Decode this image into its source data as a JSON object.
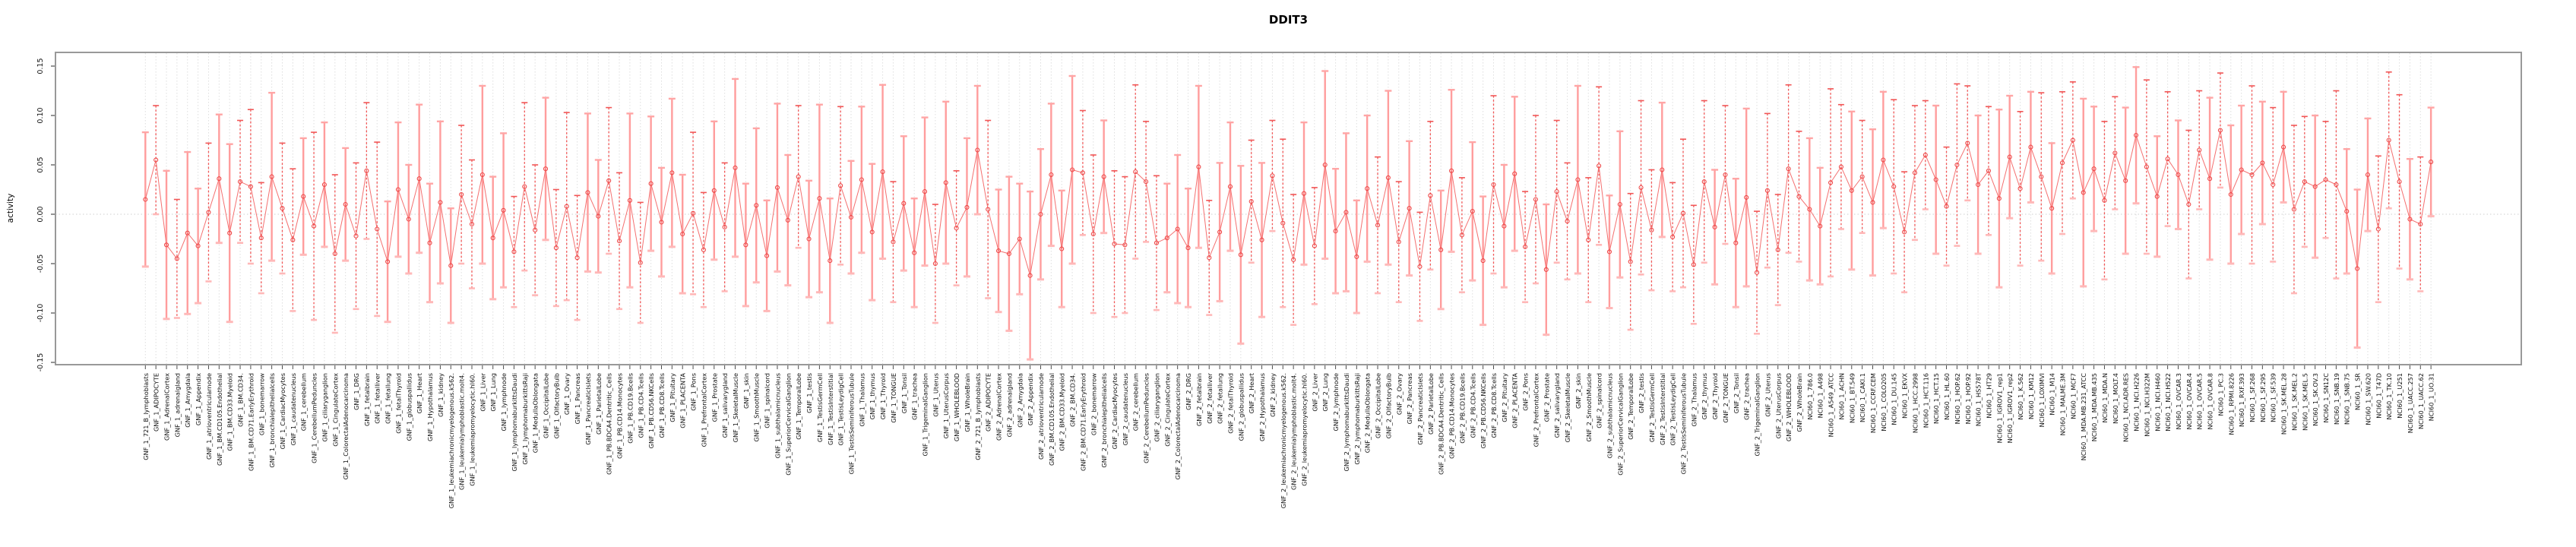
{
  "chart_data": {
    "type": "line",
    "subtype": "points-with-error-bars",
    "title": "DDIT3",
    "xlabel": "",
    "ylabel": "activity",
    "ylim": [
      -0.152,
      0.163
    ],
    "yticks": [
      -0.15,
      -0.1,
      -0.05,
      0.0,
      0.05,
      0.1,
      0.15
    ],
    "grid": "vertical dotted gridline per category; horizontal dotted line at y=0",
    "legend_position": "none",
    "marker": "open-circle",
    "categories": [
      "GNF_1_721_B_lymphoblasts",
      "GNF_1_ADIPOCYTE",
      "GNF_1_AdrenalCortex",
      "GNF_1_adrenalgland",
      "GNF_1_Amygdala",
      "GNF_1_Appendix",
      "GNF_1_atrioventricularnode",
      "GNF_1_BM.CD105.Endothelial",
      "GNF_1_BM.CD33.Myeloid",
      "GNF_1_BM.CD34.",
      "GNF_1_BM.CD71.EarlyErythroid",
      "GNF_1_bonemarrow",
      "GNF_1_bronchialepithelialcells",
      "GNF_1_CardiacMyocytes",
      "GNF_1_caudatenucleus",
      "GNF_1_cerebellum",
      "GNF_1_CerebellumPeduncles",
      "GNF_1_ciliaryganglion",
      "GNF_1_CingulateCortex",
      "GNF_1_ColorectalAdenocarcinoma",
      "GNF_1_DRG",
      "GNF_1_fetalbrain",
      "GNF_1_fetalliver",
      "GNF_1_fetallung",
      "GNF_1_fetalThyroid",
      "GNF_1_globuspallidus",
      "GNF_1_Heart",
      "GNF_1_Hypothalamus",
      "GNF_1_kidney",
      "GNF_1_leukemiachronicmyelogenous.k562.",
      "GNF_1_leukemialymphoblastic.molt4.",
      "GNF_1_leukemiapromyelocytic.hl60.",
      "GNF_1_Liver",
      "GNF_1_Lung",
      "GNF_1_lymphnode",
      "GNF_1_lymphomaburkittsDaudi",
      "GNF_1_lymphomaburkittsRaji",
      "GNF_1_MedullaOblongata",
      "GNF_1_OccipitalLobe",
      "GNF_1_OlfactoryBulb",
      "GNF_1_Ovary",
      "GNF_1_Pancreas",
      "GNF_1_PancreaticIslets",
      "GNF_1_ParietalLobe",
      "GNF_1_PB.BDCA4.Dentritic_Cells",
      "GNF_1_PB.CD14.Monocytes",
      "GNF_1_PB.CD19.Bcells",
      "GNF_1_PB.CD4.Tcells",
      "GNF_1_PB.CD56.NKCells",
      "GNF_1_PB.CD8.Tcells",
      "GNF_1_Pituitary",
      "GNF_1_PLACENTA",
      "GNF_1_Pons",
      "GNF_1_PrefrontalCortex",
      "GNF_1_Prostate",
      "GNF_1_salivarygland",
      "GNF_1_SkeletalMuscle",
      "GNF_1_skin",
      "GNF_1_SmoothMuscle",
      "GNF_1_spinalcord",
      "GNF_1_subthalamicnucleus",
      "GNF_1_SuperiorCervicalGanglion",
      "GNF_1_TemporalLobe",
      "GNF_1_testis",
      "GNF_1_TestisGermCell",
      "GNF_1_TestisInterstitial",
      "GNF_1_TestisLeydigCell",
      "GNF_1_TestisSeminiferousTubule",
      "GNF_1_Thalamus",
      "GNF_1_thymus",
      "GNF_1_Thyroid",
      "GNF_1_TONGUE",
      "GNF_1_Tonsil",
      "GNF_1_trachea",
      "GNF_1_TrigeminalGanglion",
      "GNF_1_Uterus",
      "GNF_1_UterusCorpus",
      "GNF_1_WHOLEBLOOD",
      "GNF_1_WholeBrain",
      "GNF_2_721_B_lymphoblasts",
      "GNF_2_ADIPOCYTE",
      "GNF_2_AdrenalCortex",
      "GNF_2_adrenalgland",
      "GNF_2_Amygdala",
      "GNF_2_Appendix",
      "GNF_2_atrioventricularnode",
      "GNF_2_BM.CD105.Endothelial",
      "GNF_2_BM.CD33.Myeloid",
      "GNF_2_BM.CD34.",
      "GNF_2_BM.CD71.EarlyErythroid",
      "GNF_2_bonemarrow",
      "GNF_2_bronchialepithelialcells",
      "GNF_2_CardiacMyocytes",
      "GNF_2_caudatenucleus",
      "GNF_2_cerebellum",
      "GNF_2_CerebellumPeduncles",
      "GNF_2_ciliaryganglion",
      "GNF_2_CingulateCortex",
      "GNF_2_ColorectalAdenocarcinoma",
      "GNF_2_DRG",
      "GNF_2_fetalbrain",
      "GNF_2_fetalliver",
      "GNF_2_fetallung",
      "GNF_2_fetalThyroid",
      "GNF_2_globuspallidus",
      "GNF_2_Heart",
      "GNF_2_Hypothalamus",
      "GNF_2_kidney",
      "GNF_2_leukemiachronicmyelogenous.k562.",
      "GNF_2_leukemialymphoblastic.molt4.",
      "GNF_2_leukemiapromyelocytic.hl60.",
      "GNF_2_Liver",
      "GNF_2_Lung",
      "GNF_2_lymphnode",
      "GNF_2_lymphomaburkittsDaudi",
      "GNF_2_lymphomaburkittsRaji",
      "GNF_2_MedullaOblongata",
      "GNF_2_OccipitalLobe",
      "GNF_2_OlfactoryBulb",
      "GNF_2_Ovary",
      "GNF_2_Pancreas",
      "GNF_2_PancreaticIslets",
      "GNF_2_ParietalLobe",
      "GNF_2_PB.BDCA4.Dentritic_Cells",
      "GNF_2_PB.CD14.Monocytes",
      "GNF_2_PB.CD19.Bcells",
      "GNF_2_PB.CD4.Tcells",
      "GNF_2_PB.CD56.NKCells",
      "GNF_2_PB.CD8.Tcells",
      "GNF_2_Pituitary",
      "GNF_2_PLACENTA",
      "GNF_2_Pons",
      "GNF_2_PrefrontalCortex",
      "GNF_2_Prostate",
      "GNF_2_salivarygland",
      "GNF_2_SkeletalMuscle",
      "GNF_2_skin",
      "GNF_2_SmoothMuscle",
      "GNF_2_spinalcord",
      "GNF_2_subthalamicnucleus",
      "GNF_2_SuperiorCervicalGanglion",
      "GNF_2_TemporalLobe",
      "GNF_2_testis",
      "GNF_2_TestisGermCell",
      "GNF_2_TestisInterstitial",
      "GNF_2_TestisLeydigCell",
      "GNF_2_TestisSeminiferousTubule",
      "GNF_2_Thalamus",
      "GNF_2_thymus",
      "GNF_2_Thyroid",
      "GNF_2_TONGUE",
      "GNF_2_Tonsil",
      "GNF_2_trachea",
      "GNF_2_TrigeminalGanglion",
      "GNF_2_Uterus",
      "GNF_2_UterusCorpus",
      "GNF_2_WHOLEBLOOD",
      "GNF_2_WholeBrain",
      "NCI60_1_786.0",
      "NCI60_1_A498",
      "NCI60_1_A549_ATCC",
      "NCI60_1_ACHN",
      "NCI60_1_BT.549",
      "NCI60_1_CAKI.1",
      "NCI60_1_CCRF.CEM",
      "NCI60_1_COLO205",
      "NCI60_1_DU.145",
      "NCI60_1_EKVX",
      "NCI60_1_HCC.2998",
      "NCI60_1_HCT.116",
      "NCI60_1_HCT.15",
      "NCI60_1_HL.60",
      "NCI60_1_HOP.62",
      "NCI60_1_HOP.92",
      "NCI60_1_HS578T",
      "NCI60_1_HT29",
      "NCI60_1_IGROV1_rep1",
      "NCI60_1_IGROV1_rep2",
      "NCI60_1_K.562",
      "NCI60_1_KM12",
      "NCI60_1_LOXIMVI",
      "NCI60_1_M14",
      "NCI60_1_MALME.3M",
      "NCI60_1_MCF7",
      "NCI60_1_MDA.MB.231_ATCC",
      "NCI60_1_MDA.MB.435",
      "NCI60_1_MDA.N",
      "NCI60_1_MOLT.4",
      "NCI60_1_NCI.ADR.RES",
      "NCI60_1_NCI.H226",
      "NCI60_1_NCI.H322M",
      "NCI60_1_NCI.H460",
      "NCI60_1_NCI.H522",
      "NCI60_1_OVCAR.3",
      "NCI60_1_OVCAR.4",
      "NCI60_1_OVCAR.5",
      "NCI60_1_OVCAR.8",
      "NCI60_1_PC.3",
      "NCI60_1_RPMI.8226",
      "NCI60_1_RXF.393",
      "NCI60_1_SF.268",
      "NCI60_1_SF.295",
      "NCI60_1_SF.539",
      "NCI60_1_SK.MEL.28",
      "NCI60_1_SK.MEL.2",
      "NCI60_1_SK.MEL.5",
      "NCI60_1_SK.OV.3",
      "NCI60_1_SN12C",
      "NCI60_1_SNB.19",
      "NCI60_1_SNB.75",
      "NCI60_1_SR",
      "NCI60_1_SW.620",
      "NCI60_1_T47D",
      "NCI60_1_TK.10",
      "NCI60_1_U251",
      "NCI60_1_UACC.257",
      "NCI60_1_UACC.62",
      "NCI60_1_UO.31"
    ],
    "values": [
      0.015,
      0.055,
      -0.031,
      -0.045,
      -0.019,
      -0.032,
      0.002,
      0.036,
      -0.019,
      0.033,
      0.028,
      -0.024,
      0.038,
      0.006,
      -0.026,
      0.018,
      -0.012,
      0.03,
      -0.04,
      0.01,
      -0.022,
      0.044,
      -0.015,
      -0.048,
      0.025,
      -0.005,
      0.036,
      -0.029,
      0.012,
      -0.052,
      0.02,
      -0.01,
      0.04,
      -0.024,
      0.004,
      -0.038,
      0.028,
      -0.016,
      0.046,
      -0.034,
      0.008,
      -0.044,
      0.022,
      -0.002,
      0.034,
      -0.027,
      0.014,
      -0.049,
      0.031,
      -0.008,
      0.042,
      -0.02,
      0.001,
      -0.036,
      0.024,
      -0.013,
      0.047,
      -0.031,
      0.009,
      -0.042,
      0.027,
      -0.006,
      0.038,
      -0.025,
      0.016,
      -0.047,
      0.029,
      -0.003,
      0.035,
      -0.018,
      0.043,
      -0.028,
      0.011,
      -0.039,
      0.023,
      -0.05,
      0.032,
      -0.014,
      0.007,
      0.065,
      0.005,
      -0.037,
      -0.04,
      -0.025,
      -0.062,
      0.0,
      0.04,
      -0.035,
      0.045,
      0.042,
      -0.02,
      0.038,
      -0.03,
      -0.031,
      0.043,
      0.033,
      -0.029,
      -0.024,
      -0.015,
      -0.034,
      0.048,
      -0.044,
      -0.018,
      0.028,
      -0.041,
      0.013,
      -0.026,
      0.039,
      -0.009,
      -0.046,
      0.021,
      -0.032,
      0.05,
      -0.017,
      0.002,
      -0.043,
      0.026,
      -0.011,
      0.037,
      -0.028,
      0.006,
      -0.053,
      0.019,
      -0.036,
      0.044,
      -0.021,
      0.003,
      -0.047,
      0.03,
      -0.012,
      0.041,
      -0.033,
      0.015,
      -0.056,
      0.023,
      -0.007,
      0.035,
      -0.026,
      0.049,
      -0.038,
      0.01,
      -0.048,
      0.027,
      -0.016,
      0.045,
      -0.023,
      0.001,
      -0.051,
      0.033,
      -0.013,
      0.04,
      -0.029,
      0.017,
      -0.059,
      0.024,
      -0.036,
      0.046,
      0.018,
      0.005,
      -0.012,
      0.032,
      0.048,
      0.024,
      0.038,
      0.012,
      0.055,
      0.028,
      -0.018,
      0.042,
      0.06,
      0.035,
      0.008,
      0.05,
      0.072,
      0.03,
      0.044,
      0.016,
      0.058,
      0.026,
      0.068,
      0.038,
      0.006,
      0.052,
      0.075,
      0.022,
      0.046,
      0.014,
      0.062,
      0.034,
      0.08,
      0.048,
      0.018,
      0.056,
      0.04,
      0.01,
      0.065,
      0.036,
      0.085,
      0.02,
      0.045,
      0.04,
      0.052,
      0.03,
      0.068,
      0.005,
      0.033,
      0.028,
      0.035,
      0.03,
      0.003,
      -0.055,
      0.04,
      -0.015,
      0.075,
      0.033,
      -0.005,
      -0.01,
      0.053
    ],
    "ci_halfwidth": [
      0.068,
      0.055,
      0.075,
      0.06,
      0.082,
      0.058,
      0.07,
      0.065,
      0.09,
      0.062,
      0.078,
      0.056,
      0.085,
      0.066,
      0.072,
      0.059,
      0.095,
      0.063,
      0.08,
      0.057,
      0.074,
      0.069,
      0.088,
      0.061,
      0.068,
      0.055,
      0.075,
      0.06,
      0.082,
      0.058,
      0.07,
      0.065,
      0.09,
      0.062,
      0.078,
      0.056,
      0.085,
      0.066,
      0.072,
      0.059,
      0.095,
      0.063,
      0.08,
      0.057,
      0.074,
      0.069,
      0.088,
      0.061,
      0.068,
      0.055,
      0.075,
      0.06,
      0.082,
      0.058,
      0.07,
      0.065,
      0.09,
      0.062,
      0.078,
      0.056,
      0.085,
      0.066,
      0.072,
      0.059,
      0.095,
      0.063,
      0.08,
      0.057,
      0.074,
      0.069,
      0.088,
      0.061,
      0.068,
      0.055,
      0.075,
      0.06,
      0.082,
      0.058,
      0.07,
      0.065,
      0.09,
      0.062,
      0.078,
      0.056,
      0.085,
      0.066,
      0.072,
      0.059,
      0.095,
      0.063,
      0.08,
      0.057,
      0.074,
      0.069,
      0.088,
      0.061,
      0.068,
      0.055,
      0.075,
      0.06,
      0.082,
      0.058,
      0.07,
      0.065,
      0.09,
      0.062,
      0.078,
      0.056,
      0.085,
      0.066,
      0.072,
      0.059,
      0.095,
      0.063,
      0.08,
      0.057,
      0.074,
      0.069,
      0.088,
      0.061,
      0.068,
      0.055,
      0.075,
      0.06,
      0.082,
      0.058,
      0.07,
      0.065,
      0.09,
      0.062,
      0.078,
      0.056,
      0.085,
      0.066,
      0.072,
      0.059,
      0.095,
      0.063,
      0.08,
      0.057,
      0.074,
      0.069,
      0.088,
      0.061,
      0.068,
      0.055,
      0.075,
      0.06,
      0.082,
      0.058,
      0.07,
      0.065,
      0.09,
      0.062,
      0.078,
      0.056,
      0.085,
      0.066,
      0.072,
      0.059,
      0.095,
      0.063,
      0.08,
      0.057,
      0.074,
      0.069,
      0.088,
      0.061,
      0.068,
      0.055,
      0.075,
      0.06,
      0.082,
      0.058,
      0.07,
      0.065,
      0.09,
      0.062,
      0.078,
      0.056,
      0.085,
      0.066,
      0.072,
      0.059,
      0.095,
      0.063,
      0.08,
      0.057,
      0.074,
      0.069,
      0.088,
      0.061,
      0.068,
      0.055,
      0.075,
      0.06,
      0.082,
      0.058,
      0.07,
      0.065,
      0.09,
      0.062,
      0.078,
      0.056,
      0.085,
      0.066,
      0.072,
      0.059,
      0.095,
      0.063,
      0.08,
      0.057,
      0.074,
      0.069,
      0.088,
      0.061,
      0.068,
      0.055
    ]
  },
  "colors": {
    "background": "#ffffff",
    "plot_border": "#999999",
    "grid_vertical": "#dedede",
    "zero_line": "#cfcfcf",
    "tick": "#4d4d4d",
    "tick_label": "#111111",
    "errorbar_solid": "#ff9d9d",
    "errorbar_dashed": "#f15656",
    "cap_top": "#ffa5a5",
    "cap_bottom": "#ffb8b8",
    "series_line": "#f47070",
    "marker_stroke": "#ee4747"
  }
}
